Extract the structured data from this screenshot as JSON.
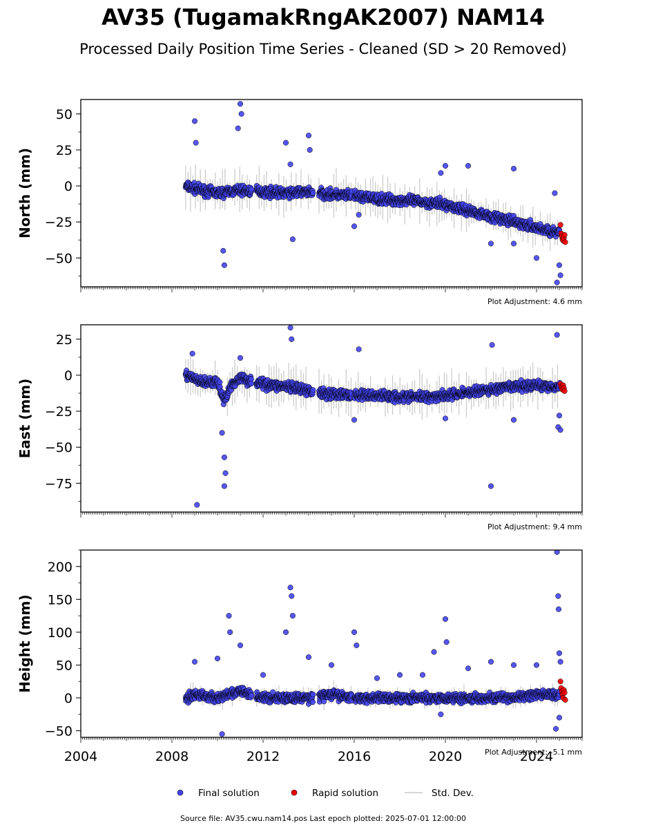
{
  "title": "AV35 (TugamakRngAK2007) NAM14",
  "subtitle": "Processed Daily Position Time Series - Cleaned (SD > 20 Removed)",
  "footer": "Source file: AV35.cwu.nam14.pos  Last epoch plotted: 2025-07-01 12:00:00",
  "colors": {
    "final": "#4444ee",
    "rapid": "#ee0000",
    "stddev": "#c8c8c8",
    "edge": "#000000"
  },
  "legend": {
    "final": "Final solution",
    "rapid": "Rapid solution",
    "stddev": "Std. Dev."
  },
  "chart_data": [
    {
      "type": "scatter",
      "ylabel": "North (mm)",
      "xlim": [
        2004,
        2026
      ],
      "ylim": [
        -70,
        60
      ],
      "yticks": [
        50,
        25,
        0,
        -25,
        -50
      ],
      "adjustment": "Plot Adjustment: 4.6 mm",
      "final_trend": [
        [
          2008.6,
          0
        ],
        [
          2009.3,
          -3
        ],
        [
          2010.0,
          -5
        ],
        [
          2011.0,
          -3
        ],
        [
          2012.0,
          -4
        ],
        [
          2013.0,
          -5
        ],
        [
          2014.0,
          -4
        ],
        [
          2015.0,
          -6
        ],
        [
          2016.0,
          -7
        ],
        [
          2017.0,
          -9
        ],
        [
          2018.0,
          -10
        ],
        [
          2019.0,
          -11
        ],
        [
          2020.0,
          -13
        ],
        [
          2021.0,
          -17
        ],
        [
          2022.0,
          -21
        ],
        [
          2023.0,
          -25
        ],
        [
          2024.0,
          -29
        ],
        [
          2025.0,
          -33
        ]
      ],
      "final_scatter": 5,
      "final_spikes": [
        [
          2009.0,
          45
        ],
        [
          2009.05,
          30
        ],
        [
          2010.25,
          -45
        ],
        [
          2010.3,
          -55
        ],
        [
          2010.9,
          40
        ],
        [
          2011.0,
          57
        ],
        [
          2011.05,
          50
        ],
        [
          2013.0,
          30
        ],
        [
          2013.2,
          15
        ],
        [
          2013.3,
          -37
        ],
        [
          2014.0,
          35
        ],
        [
          2014.05,
          25
        ],
        [
          2016.0,
          -28
        ],
        [
          2016.2,
          -20
        ],
        [
          2019.8,
          9
        ],
        [
          2020.0,
          14
        ],
        [
          2021.0,
          14
        ],
        [
          2022.0,
          -40
        ],
        [
          2023.0,
          12
        ],
        [
          2023.0,
          -40
        ],
        [
          2024.0,
          -50
        ],
        [
          2024.8,
          -5
        ],
        [
          2024.9,
          -67
        ],
        [
          2025.0,
          -55
        ],
        [
          2025.05,
          -62
        ]
      ],
      "rapid": [
        [
          2025.05,
          -27
        ],
        [
          2025.08,
          -33
        ],
        [
          2025.11,
          -35
        ],
        [
          2025.14,
          -37
        ],
        [
          2025.17,
          -38
        ],
        [
          2025.2,
          -36
        ],
        [
          2025.23,
          -34
        ],
        [
          2025.26,
          -39
        ]
      ]
    },
    {
      "type": "scatter",
      "ylabel": "East (mm)",
      "xlim": [
        2004,
        2026
      ],
      "ylim": [
        -95,
        35
      ],
      "yticks": [
        25,
        0,
        -25,
        -50,
        -75
      ],
      "adjustment": "Plot Adjustment: 9.4 mm",
      "final_trend": [
        [
          2008.6,
          0
        ],
        [
          2009.3,
          -5
        ],
        [
          2010.0,
          -5
        ],
        [
          2010.3,
          -18
        ],
        [
          2010.6,
          -7
        ],
        [
          2011.0,
          -2
        ],
        [
          2012.0,
          -6
        ],
        [
          2013.0,
          -8
        ],
        [
          2014.0,
          -11
        ],
        [
          2015.0,
          -13
        ],
        [
          2016.0,
          -14
        ],
        [
          2017.0,
          -14
        ],
        [
          2018.0,
          -15
        ],
        [
          2019.0,
          -15
        ],
        [
          2020.0,
          -14
        ],
        [
          2021.0,
          -12
        ],
        [
          2022.0,
          -10
        ],
        [
          2023.0,
          -8
        ],
        [
          2024.0,
          -7
        ],
        [
          2025.0,
          -8
        ]
      ],
      "final_scatter": 5,
      "final_spikes": [
        [
          2009.1,
          -90
        ],
        [
          2008.9,
          15
        ],
        [
          2010.2,
          -40
        ],
        [
          2010.3,
          -57
        ],
        [
          2010.35,
          -68
        ],
        [
          2010.3,
          -77
        ],
        [
          2011.0,
          12
        ],
        [
          2013.2,
          33
        ],
        [
          2013.25,
          25
        ],
        [
          2016.0,
          -31
        ],
        [
          2016.2,
          18
        ],
        [
          2020.0,
          -30
        ],
        [
          2022.0,
          -77
        ],
        [
          2022.05,
          21
        ],
        [
          2023.0,
          -31
        ],
        [
          2024.9,
          28
        ],
        [
          2024.95,
          -36
        ],
        [
          2025.05,
          -38
        ],
        [
          2025.0,
          -28
        ]
      ],
      "rapid": [
        [
          2025.05,
          -6
        ],
        [
          2025.08,
          -8
        ],
        [
          2025.11,
          -9
        ],
        [
          2025.14,
          -10
        ],
        [
          2025.17,
          -7
        ],
        [
          2025.2,
          -9
        ],
        [
          2025.23,
          -11
        ]
      ]
    },
    {
      "type": "scatter",
      "ylabel": "Height (mm)",
      "xlim": [
        2004,
        2026
      ],
      "ylim": [
        -60,
        225
      ],
      "yticks": [
        200,
        150,
        100,
        50,
        0,
        -50
      ],
      "adjustment": "Plot Adjustment: -5.1 mm",
      "final_trend": [
        [
          2008.6,
          0
        ],
        [
          2009.0,
          5
        ],
        [
          2010.0,
          0
        ],
        [
          2010.5,
          5
        ],
        [
          2011.0,
          10
        ],
        [
          2012.0,
          0
        ],
        [
          2013.0,
          0
        ],
        [
          2014.0,
          0
        ],
        [
          2015.0,
          5
        ],
        [
          2016.0,
          0
        ],
        [
          2017.0,
          0
        ],
        [
          2018.0,
          0
        ],
        [
          2019.0,
          0
        ],
        [
          2020.0,
          0
        ],
        [
          2021.0,
          0
        ],
        [
          2022.0,
          0
        ],
        [
          2023.0,
          0
        ],
        [
          2024.0,
          5
        ],
        [
          2025.0,
          5
        ]
      ],
      "final_scatter": 10,
      "final_spikes": [
        [
          2009.0,
          55
        ],
        [
          2010.0,
          60
        ],
        [
          2010.2,
          -55
        ],
        [
          2010.5,
          125
        ],
        [
          2010.55,
          100
        ],
        [
          2011.0,
          80
        ],
        [
          2012.0,
          35
        ],
        [
          2013.0,
          100
        ],
        [
          2013.2,
          168
        ],
        [
          2013.25,
          155
        ],
        [
          2013.3,
          125
        ],
        [
          2014.0,
          62
        ],
        [
          2015.0,
          50
        ],
        [
          2016.0,
          100
        ],
        [
          2016.1,
          80
        ],
        [
          2017.0,
          30
        ],
        [
          2018.0,
          35
        ],
        [
          2019.0,
          35
        ],
        [
          2019.5,
          70
        ],
        [
          2019.8,
          -25
        ],
        [
          2020.0,
          120
        ],
        [
          2020.05,
          85
        ],
        [
          2021.0,
          45
        ],
        [
          2022.0,
          55
        ],
        [
          2023.0,
          50
        ],
        [
          2024.0,
          50
        ],
        [
          2024.9,
          222
        ],
        [
          2024.95,
          155
        ],
        [
          2024.97,
          135
        ],
        [
          2024.85,
          -47
        ],
        [
          2025.0,
          68
        ],
        [
          2025.05,
          55
        ],
        [
          2025.0,
          -30
        ]
      ],
      "rapid": [
        [
          2025.05,
          25
        ],
        [
          2025.08,
          15
        ],
        [
          2025.11,
          10
        ],
        [
          2025.14,
          5
        ],
        [
          2025.17,
          0
        ],
        [
          2025.2,
          12
        ],
        [
          2025.23,
          8
        ],
        [
          2025.26,
          -3
        ]
      ]
    }
  ],
  "xticks": [
    "2004",
    "2008",
    "2012",
    "2016",
    "2020",
    "2024"
  ]
}
